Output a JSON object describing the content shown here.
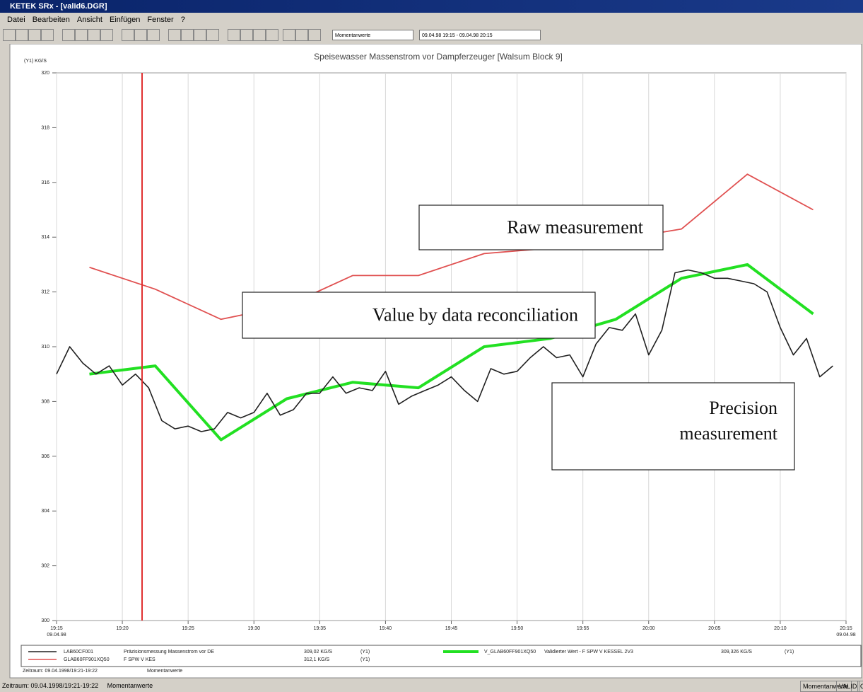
{
  "window": {
    "title": "KETEK SRx - [valid6.DGR]",
    "menu": [
      "Datei",
      "Bearbeiten",
      "Ansicht",
      "Einfügen",
      "Fenster",
      "?"
    ],
    "view_mode": "Momentanwerte",
    "time_range": "09.04.98 19:15 - 09.04.98 20:15",
    "period": "Zeitraum: 09.04.1998/19:21-19:22",
    "status": {
      "left": "Zeitraum: 09.04.1998/19:21-19:22",
      "mode": "Momentanwerte",
      "fields": [
        "Momentanwerte",
        "VALID",
        "OO"
      ]
    }
  },
  "chart_data": {
    "type": "line",
    "title": "Speisewasser Massenstrom vor Dampferzeuger [Walsum Block 9]",
    "y_label": "(Y1) KG/S",
    "xlim": [
      "19:15",
      "20:15"
    ],
    "xticks": [
      "19:15",
      "19:20",
      "19:25",
      "19:30",
      "19:35",
      "19:40",
      "19:45",
      "19:50",
      "19:55",
      "20:00",
      "20:05",
      "20:10",
      "20:15"
    ],
    "date_label": "09.04.98",
    "ylim": [
      300,
      320
    ],
    "yticks": [
      300,
      302,
      304,
      306,
      308,
      310,
      312,
      314,
      316,
      318,
      320
    ],
    "grid": "x",
    "cursor_x": "19:21:30",
    "cursor_color": "#e03030",
    "series": [
      {
        "name": "LAB60CF001",
        "description": "Präzisionsmessung Massenstrom vor DE",
        "value_text": "309,02 KG/S",
        "axis_text": "(Y1)",
        "color": "#202020",
        "width": 1.6,
        "x": [
          "19:15",
          "19:16",
          "19:17",
          "19:18",
          "19:19",
          "19:20",
          "19:21",
          "19:22",
          "19:23",
          "19:24",
          "19:25",
          "19:26",
          "19:27",
          "19:28",
          "19:29",
          "19:30",
          "19:31",
          "19:32",
          "19:33",
          "19:34",
          "19:35",
          "19:36",
          "19:37",
          "19:38",
          "19:39",
          "19:40",
          "19:41",
          "19:42",
          "19:43",
          "19:44",
          "19:45",
          "19:46",
          "19:47",
          "19:48",
          "19:49",
          "19:50",
          "19:51",
          "19:52",
          "19:53",
          "19:54",
          "19:55",
          "19:56",
          "19:57",
          "19:58",
          "19:59",
          "20:00",
          "20:01",
          "20:02",
          "20:03",
          "20:04",
          "20:05",
          "20:06",
          "20:07",
          "20:08",
          "20:09",
          "20:10",
          "20:11",
          "20:12",
          "20:13",
          "20:14"
        ],
        "values": [
          309.0,
          310.0,
          309.4,
          309.0,
          309.3,
          308.6,
          309.0,
          308.5,
          307.3,
          307.0,
          307.1,
          306.9,
          307.0,
          307.6,
          307.4,
          307.6,
          308.3,
          307.5,
          307.7,
          308.3,
          308.3,
          308.9,
          308.3,
          308.5,
          308.4,
          309.1,
          307.9,
          308.2,
          308.4,
          308.6,
          308.9,
          308.4,
          308.0,
          309.2,
          309.0,
          309.1,
          309.6,
          310.0,
          309.6,
          309.7,
          308.9,
          310.1,
          310.7,
          310.6,
          311.2,
          309.7,
          310.6,
          312.7,
          312.8,
          312.7,
          312.5,
          312.5,
          312.4,
          312.3,
          312.0,
          310.7,
          309.7,
          310.3,
          308.9,
          309.3
        ]
      },
      {
        "name": "GLAB60FF901XQ50",
        "description": "F SPW V KES",
        "value_text": "312,1 KG/S",
        "axis_text": "(Y1)",
        "color": "#e05050",
        "width": 1.8,
        "x": [
          "19:17:30",
          "19:22:30",
          "19:27:30",
          "19:32:30",
          "19:37:30",
          "19:42:30",
          "19:47:30",
          "19:52:30",
          "19:57:30",
          "20:02:30",
          "20:07:30",
          "20:12:30"
        ],
        "values": [
          312.9,
          312.1,
          311.0,
          311.5,
          312.6,
          312.6,
          313.4,
          313.6,
          313.9,
          314.3,
          316.3,
          315.0
        ]
      },
      {
        "name": "V_GLAB60FF901XQ50",
        "description": "Validierter Wert - F SPW V KESSEL 2V3",
        "value_text": "309,326 KG/S",
        "axis_text": "(Y1)",
        "color": "#22e022",
        "width": 4,
        "x": [
          "19:17:30",
          "19:22:30",
          "19:27:30",
          "19:32:30",
          "19:37:30",
          "19:42:30",
          "19:47:30",
          "19:52:30",
          "19:57:30",
          "20:02:30",
          "20:07:30",
          "20:12:30"
        ],
        "values": [
          309.0,
          309.3,
          306.6,
          308.1,
          308.7,
          308.5,
          310.0,
          310.3,
          311.0,
          312.5,
          313.0,
          311.2
        ]
      }
    ],
    "annotations": [
      "Raw measurement",
      "Value by data reconciliation",
      "Precision measurement"
    ]
  }
}
